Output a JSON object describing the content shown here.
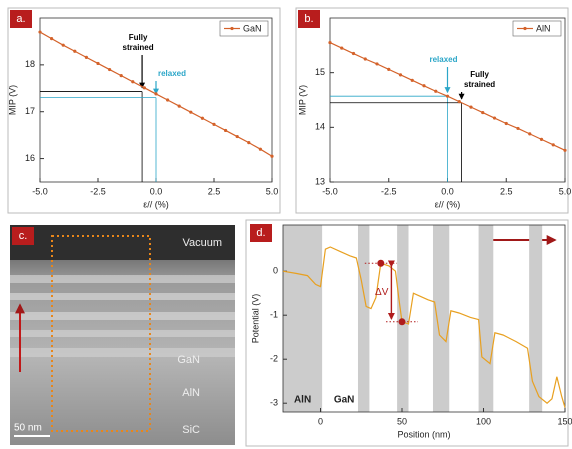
{
  "chart_data": [
    {
      "type": "line",
      "panel_label": "a.",
      "xlabel": "ε// (%)",
      "ylabel": "MIP (V)",
      "xlim": [
        -5,
        5
      ],
      "xticks": [
        {
          "value": -5,
          "label": "-5.0"
        },
        {
          "value": -2.5,
          "label": "-2.5"
        },
        {
          "value": 0,
          "label": "0.0"
        },
        {
          "value": 2.5,
          "label": "2.5"
        },
        {
          "value": 5,
          "label": "5.0"
        }
      ],
      "ylim": [
        15.5,
        19
      ],
      "yticks": [
        16,
        17,
        18
      ],
      "x": [
        -5,
        -4.5,
        -4,
        -3.5,
        -3,
        -2.5,
        -2,
        -1.5,
        -1,
        -0.5,
        0,
        0.5,
        1,
        1.5,
        2,
        2.5,
        3,
        3.5,
        4,
        4.5,
        5
      ],
      "series": [
        {
          "name": "GaN",
          "color": "#d4622a",
          "values": [
            18.7,
            18.56,
            18.42,
            18.29,
            18.16,
            18.03,
            17.9,
            17.77,
            17.64,
            17.51,
            17.38,
            17.25,
            17.12,
            16.99,
            16.86,
            16.73,
            16.6,
            16.47,
            16.34,
            16.2,
            16.05
          ]
        }
      ],
      "legend": "upper right",
      "markers": true,
      "annotations": [
        {
          "text": [
            "Fully",
            "strained"
          ],
          "x": -0.6,
          "y": 17.43,
          "color": "#000000"
        },
        {
          "text": [
            "relaxed"
          ],
          "x": 0,
          "y": 17.3,
          "color": "#2ba6c8"
        }
      ]
    },
    {
      "type": "line",
      "panel_label": "b.",
      "xlabel": "ε// (%)",
      "ylabel": "MIP (V)",
      "xlim": [
        -5,
        5
      ],
      "xticks": [
        {
          "value": -5,
          "label": "-5.0"
        },
        {
          "value": -2.5,
          "label": "-2.5"
        },
        {
          "value": 0,
          "label": "0.0"
        },
        {
          "value": 2.5,
          "label": "2.5"
        },
        {
          "value": 5,
          "label": "5.0"
        }
      ],
      "ylim": [
        13,
        16
      ],
      "yticks": [
        13,
        14,
        15
      ],
      "x": [
        -5,
        -4.5,
        -4,
        -3.5,
        -3,
        -2.5,
        -2,
        -1.5,
        -1,
        -0.5,
        0,
        0.5,
        1,
        1.5,
        2,
        2.5,
        3,
        3.5,
        4,
        4.5,
        5
      ],
      "series": [
        {
          "name": "AlN",
          "color": "#d4622a",
          "values": [
            15.55,
            15.45,
            15.35,
            15.25,
            15.16,
            15.06,
            14.96,
            14.86,
            14.76,
            14.66,
            14.57,
            14.47,
            14.37,
            14.27,
            14.17,
            14.07,
            13.98,
            13.88,
            13.78,
            13.68,
            13.58
          ]
        }
      ],
      "legend": "upper right",
      "markers": true,
      "annotations": [
        {
          "text": [
            "relaxed"
          ],
          "x": 0,
          "y": 14.57,
          "color": "#2ba6c8"
        },
        {
          "text": [
            "Fully",
            "strained"
          ],
          "x": 0.6,
          "y": 14.45,
          "color": "#000000"
        }
      ]
    },
    {
      "type": "line",
      "panel_label": "d.",
      "xlabel": "Position (nm)",
      "ylabel": "Potential (V)",
      "xlim": [
        -23,
        150
      ],
      "xticks": [
        0,
        50,
        100,
        150
      ],
      "ylim": [
        -3.2,
        1.05
      ],
      "yticks": [
        0,
        -1,
        -2,
        -3
      ],
      "x": [
        -23,
        -15,
        -8,
        -3,
        0,
        3,
        6,
        12,
        18,
        22,
        25,
        28,
        31,
        34,
        37,
        42,
        46,
        48,
        50,
        54,
        57,
        60,
        66,
        70,
        73,
        77,
        80,
        85,
        92,
        97,
        99,
        104,
        107,
        112,
        120,
        127,
        130,
        134,
        139,
        142,
        145,
        148,
        150
      ],
      "series": [
        {
          "color": "#e8a020",
          "values": [
            0.0,
            -0.05,
            -0.1,
            -0.3,
            -0.35,
            0.5,
            0.55,
            0.45,
            0.35,
            0.3,
            -0.2,
            -0.8,
            -0.85,
            -0.6,
            0.18,
            0.12,
            0.0,
            -0.6,
            -1.15,
            -1.2,
            -0.5,
            -0.55,
            -0.65,
            -0.7,
            -1.45,
            -1.6,
            -0.9,
            -0.95,
            -1.05,
            -1.1,
            -1.95,
            -2.1,
            -1.4,
            -1.45,
            -1.6,
            -1.75,
            -2.5,
            -2.85,
            -3.0,
            -2.9,
            -2.4,
            -2.85,
            -3.1
          ]
        }
      ],
      "bands": [
        [
          -23,
          1
        ],
        [
          23,
          30
        ],
        [
          47,
          54
        ],
        [
          69,
          79
        ],
        [
          97,
          106
        ],
        [
          128,
          136
        ]
      ],
      "band_color": "#cccccc",
      "region_labels": [
        "AlN",
        "GaN"
      ],
      "delta_label": "ΔV",
      "points": {
        "x": [
          37,
          50
        ],
        "y": [
          0.18,
          -1.15
        ],
        "color": "#b01c1c"
      }
    }
  ],
  "image_panel": {
    "panel_label": "c.",
    "labels": [
      "Vacuum",
      "GaN",
      "AlN",
      "SiC"
    ],
    "scale_bar": "50 nm"
  }
}
